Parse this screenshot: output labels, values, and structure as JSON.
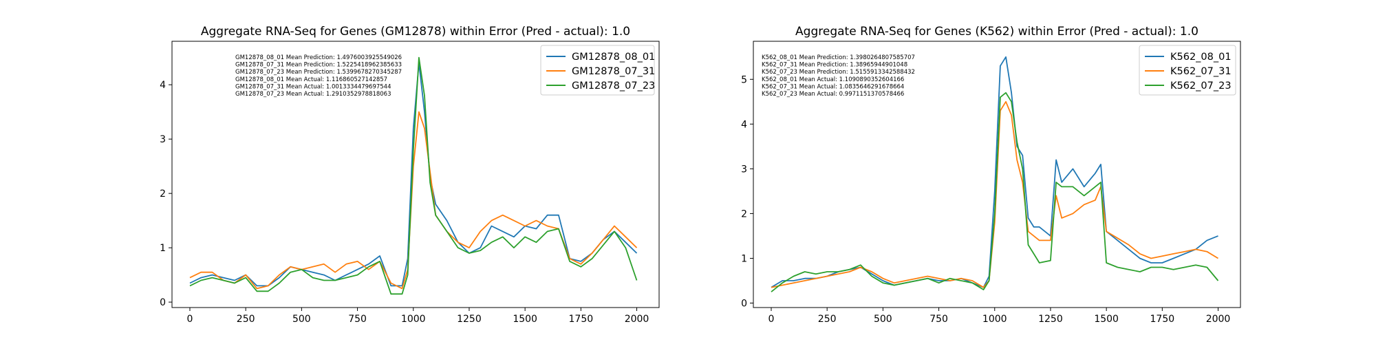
{
  "colors": {
    "series1": "#1f77b4",
    "series2": "#ff7f0e",
    "series3": "#2ca02c"
  },
  "chart_data": [
    {
      "type": "line",
      "title": "Aggregate RNA-Seq for Genes (GM12878) within Error (Pred - actual): 1.0",
      "xlabel": "",
      "ylabel": "",
      "xlim": [
        -80,
        2100
      ],
      "ylim": [
        -0.1,
        4.8
      ],
      "xticks": [
        0,
        250,
        500,
        750,
        1000,
        1250,
        1500,
        1750,
        2000
      ],
      "yticks": [
        0,
        1,
        2,
        3,
        4
      ],
      "grid": false,
      "legend_position": "top-right",
      "annotations": [
        "GM12878_08_01 Mean Prediction: 1.4976003925549026",
        "GM12878_07_31 Mean Prediction: 1.5225418962385633",
        "GM12878_07_23 Mean Prediction: 1.5399678270345287",
        "GM12878_08_01 Mean Actual: 1.116860527142857",
        "GM12878_07_31 Mean Actual: 1.0013334479697544",
        "GM12878_07_23 Mean Actual: 1.2910352978818063"
      ],
      "x": [
        0,
        50,
        100,
        150,
        200,
        250,
        300,
        350,
        400,
        450,
        500,
        550,
        600,
        650,
        700,
        750,
        800,
        850,
        900,
        950,
        975,
        1000,
        1025,
        1050,
        1075,
        1100,
        1150,
        1200,
        1250,
        1300,
        1350,
        1400,
        1450,
        1500,
        1550,
        1600,
        1650,
        1700,
        1750,
        1800,
        1850,
        1900,
        1950,
        2000
      ],
      "series": [
        {
          "name": "GM12878_08_01",
          "values": [
            0.35,
            0.45,
            0.5,
            0.45,
            0.4,
            0.5,
            0.3,
            0.3,
            0.45,
            0.65,
            0.6,
            0.55,
            0.5,
            0.4,
            0.5,
            0.6,
            0.7,
            0.85,
            0.3,
            0.3,
            0.8,
            3.2,
            4.4,
            3.5,
            2.3,
            1.8,
            1.5,
            1.1,
            0.9,
            1.0,
            1.4,
            1.3,
            1.2,
            1.4,
            1.35,
            1.6,
            1.6,
            0.8,
            0.75,
            0.9,
            1.15,
            1.3,
            1.1,
            0.9
          ]
        },
        {
          "name": "GM12878_07_31",
          "values": [
            0.45,
            0.55,
            0.55,
            0.4,
            0.35,
            0.5,
            0.25,
            0.3,
            0.5,
            0.65,
            0.6,
            0.65,
            0.7,
            0.55,
            0.7,
            0.75,
            0.6,
            0.75,
            0.35,
            0.25,
            0.6,
            2.5,
            3.5,
            3.2,
            2.4,
            1.6,
            1.3,
            1.1,
            1.0,
            1.3,
            1.5,
            1.6,
            1.5,
            1.4,
            1.5,
            1.4,
            1.35,
            0.8,
            0.7,
            0.9,
            1.15,
            1.4,
            1.2,
            1.0
          ]
        },
        {
          "name": "GM12878_07_23",
          "values": [
            0.3,
            0.4,
            0.45,
            0.4,
            0.35,
            0.45,
            0.2,
            0.2,
            0.35,
            0.55,
            0.6,
            0.45,
            0.4,
            0.4,
            0.45,
            0.5,
            0.65,
            0.75,
            0.15,
            0.15,
            0.5,
            2.8,
            4.5,
            3.8,
            2.2,
            1.6,
            1.3,
            1.0,
            0.9,
            0.95,
            1.1,
            1.2,
            1.0,
            1.2,
            1.1,
            1.3,
            1.35,
            0.75,
            0.65,
            0.8,
            1.05,
            1.3,
            1.0,
            0.4
          ]
        }
      ]
    },
    {
      "type": "line",
      "title": "Aggregate RNA-Seq for Genes (K562) within Error (Pred - actual): 1.0",
      "xlabel": "",
      "ylabel": "",
      "xlim": [
        -80,
        2100
      ],
      "ylim": [
        -0.1,
        5.85
      ],
      "xticks": [
        0,
        250,
        500,
        750,
        1000,
        1250,
        1500,
        1750,
        2000
      ],
      "yticks": [
        0,
        1,
        2,
        3,
        4,
        5
      ],
      "grid": false,
      "legend_position": "top-right",
      "annotations": [
        "K562_08_01 Mean Prediction: 1.3980264807585707",
        "K562_07_31 Mean Prediction: 1.38965944901048",
        "K562_07_23 Mean Prediction: 1.5155913342588432",
        "K562_08_01 Mean Actual: 1.1090890352604166",
        "K562_07_31 Mean Actual: 1.0835646291678664",
        "K562_07_23 Mean Actual: 0.9971151370578466"
      ],
      "x": [
        0,
        50,
        100,
        150,
        200,
        250,
        300,
        350,
        400,
        450,
        500,
        550,
        600,
        650,
        700,
        750,
        800,
        850,
        900,
        950,
        975,
        1000,
        1025,
        1050,
        1075,
        1100,
        1125,
        1150,
        1175,
        1200,
        1250,
        1275,
        1300,
        1350,
        1400,
        1450,
        1475,
        1500,
        1550,
        1600,
        1650,
        1700,
        1750,
        1800,
        1850,
        1900,
        1950,
        2000
      ],
      "series": [
        {
          "name": "K562_08_01",
          "values": [
            0.35,
            0.5,
            0.5,
            0.55,
            0.55,
            0.6,
            0.7,
            0.75,
            0.8,
            0.65,
            0.5,
            0.4,
            0.45,
            0.5,
            0.55,
            0.5,
            0.5,
            0.55,
            0.45,
            0.35,
            0.6,
            2.5,
            5.3,
            5.5,
            4.7,
            3.5,
            3.3,
            1.9,
            1.7,
            1.7,
            1.5,
            3.2,
            2.7,
            3.0,
            2.6,
            2.9,
            3.1,
            1.6,
            1.4,
            1.2,
            1.0,
            0.9,
            0.9,
            1.0,
            1.1,
            1.2,
            1.4,
            1.5
          ]
        },
        {
          "name": "K562_07_31",
          "values": [
            0.35,
            0.4,
            0.45,
            0.5,
            0.55,
            0.6,
            0.65,
            0.7,
            0.8,
            0.7,
            0.55,
            0.45,
            0.5,
            0.55,
            0.6,
            0.55,
            0.5,
            0.55,
            0.5,
            0.35,
            0.5,
            1.8,
            4.3,
            4.5,
            4.2,
            3.2,
            2.7,
            1.6,
            1.5,
            1.4,
            1.4,
            2.4,
            1.9,
            2.0,
            2.2,
            2.3,
            2.6,
            1.6,
            1.45,
            1.3,
            1.1,
            1.0,
            1.05,
            1.1,
            1.15,
            1.2,
            1.15,
            1.0
          ]
        },
        {
          "name": "K562_07_23",
          "values": [
            0.25,
            0.45,
            0.6,
            0.7,
            0.65,
            0.7,
            0.7,
            0.75,
            0.85,
            0.6,
            0.45,
            0.4,
            0.45,
            0.5,
            0.55,
            0.45,
            0.55,
            0.5,
            0.45,
            0.3,
            0.5,
            2.0,
            4.6,
            4.7,
            4.5,
            3.6,
            3.0,
            1.3,
            1.1,
            0.9,
            0.95,
            2.7,
            2.6,
            2.6,
            2.4,
            2.6,
            2.7,
            0.9,
            0.8,
            0.75,
            0.7,
            0.8,
            0.8,
            0.75,
            0.8,
            0.85,
            0.8,
            0.5
          ]
        }
      ]
    }
  ]
}
